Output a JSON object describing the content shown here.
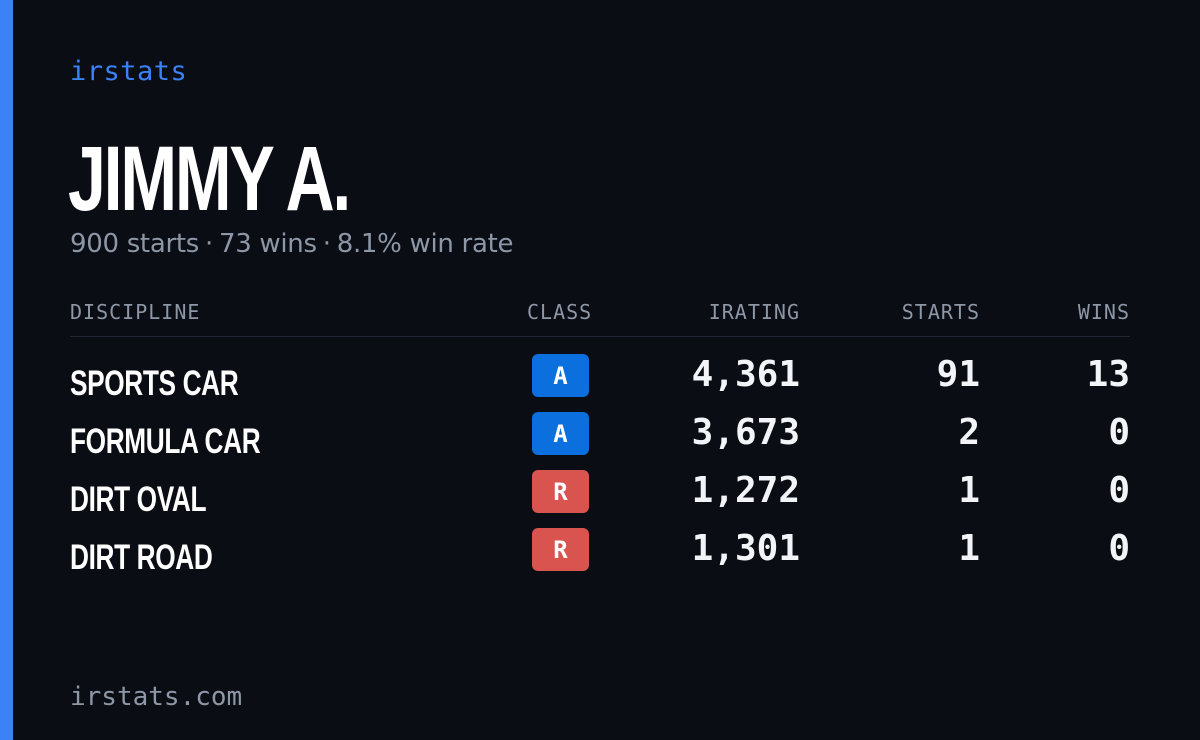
{
  "brand": "irstats",
  "player": {
    "name": "JIMMY A.",
    "starts": "900 starts",
    "wins": "73 wins",
    "win_rate": "8.1% win rate",
    "separator": "·"
  },
  "table": {
    "headers": {
      "discipline": "DISCIPLINE",
      "class": "CLASS",
      "irating": "IRATING",
      "starts": "STARTS",
      "wins": "WINS"
    },
    "rows": [
      {
        "discipline": "SPORTS CAR",
        "class": "A",
        "class_color": "#0b6fde",
        "irating": "4,361",
        "starts": "91",
        "wins": "13"
      },
      {
        "discipline": "FORMULA CAR",
        "class": "A",
        "class_color": "#0b6fde",
        "irating": "3,673",
        "starts": "2",
        "wins": "0"
      },
      {
        "discipline": "DIRT OVAL",
        "class": "R",
        "class_color": "#d9534f",
        "irating": "1,272",
        "starts": "1",
        "wins": "0"
      },
      {
        "discipline": "DIRT ROAD",
        "class": "R",
        "class_color": "#d9534f",
        "irating": "1,301",
        "starts": "1",
        "wins": "0"
      }
    ]
  },
  "footer": {
    "url": "irstats.com"
  },
  "colors": {
    "background": "#0a0d14",
    "accent": "#3b82f6",
    "muted_text": "#8d97a6",
    "class_a": "#0b6fde",
    "class_r": "#d9534f"
  }
}
